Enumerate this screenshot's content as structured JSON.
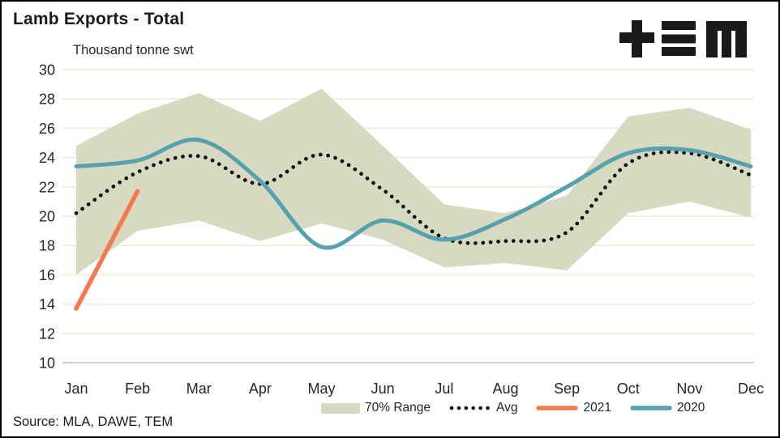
{
  "header": {
    "title": "Lamb Exports - Total",
    "subtitle": "Thousand tonne swt"
  },
  "logo": {
    "name": "TEM logo",
    "color": "#1a1a1a"
  },
  "source": {
    "text": "Source: MLA, DAWE, TEM"
  },
  "legend": {
    "items": [
      {
        "label": "70% Range",
        "marker": "band-swatch"
      },
      {
        "label": "Avg",
        "marker": "dotted-line"
      },
      {
        "label": "2021",
        "marker": "solid-line"
      },
      {
        "label": "2020",
        "marker": "solid-line"
      }
    ]
  },
  "chart_data": {
    "type": "line",
    "title": "Lamb Exports - Total",
    "ylabel": "Thousand tonne swt",
    "xlabel": "",
    "categories": [
      "Jan",
      "Feb",
      "Mar",
      "Apr",
      "May",
      "Jun",
      "Jul",
      "Aug",
      "Sep",
      "Oct",
      "Nov",
      "Dec"
    ],
    "ylim": [
      10,
      30
    ],
    "y_ticks": [
      10,
      12,
      14,
      16,
      18,
      20,
      22,
      24,
      26,
      28,
      30
    ],
    "grid": "horizontal only",
    "legend_position": "bottom",
    "colors": {
      "band": "#d7d9c1",
      "avg": "#141414",
      "y2021": "#f4794c",
      "y2020": "#55a1ae",
      "gridline": "#ebe8d9",
      "axis_line": "#bfbfbf",
      "tick_text": "#262626"
    },
    "series": [
      {
        "name": "70% Range",
        "type": "band",
        "upper": [
          24.8,
          27.0,
          28.4,
          26.5,
          28.7,
          24.8,
          20.8,
          20.2,
          21.4,
          26.8,
          27.4,
          25.9
        ],
        "lower": [
          16.0,
          19.0,
          19.7,
          18.3,
          19.5,
          18.4,
          16.5,
          16.8,
          16.3,
          20.2,
          21.0,
          19.9
        ]
      },
      {
        "name": "Avg",
        "type": "dotted",
        "values": [
          20.2,
          23.0,
          24.1,
          22.2,
          24.2,
          21.8,
          18.5,
          18.3,
          18.9,
          23.6,
          24.3,
          22.8
        ]
      },
      {
        "name": "2021",
        "type": "solid",
        "values": [
          13.7,
          21.7,
          null,
          null,
          null,
          null,
          null,
          null,
          null,
          null,
          null,
          null
        ]
      },
      {
        "name": "2020",
        "type": "solid",
        "values": [
          23.4,
          23.8,
          25.2,
          22.4,
          17.9,
          19.7,
          18.4,
          19.8,
          22.0,
          24.3,
          24.5,
          23.4
        ]
      }
    ]
  }
}
